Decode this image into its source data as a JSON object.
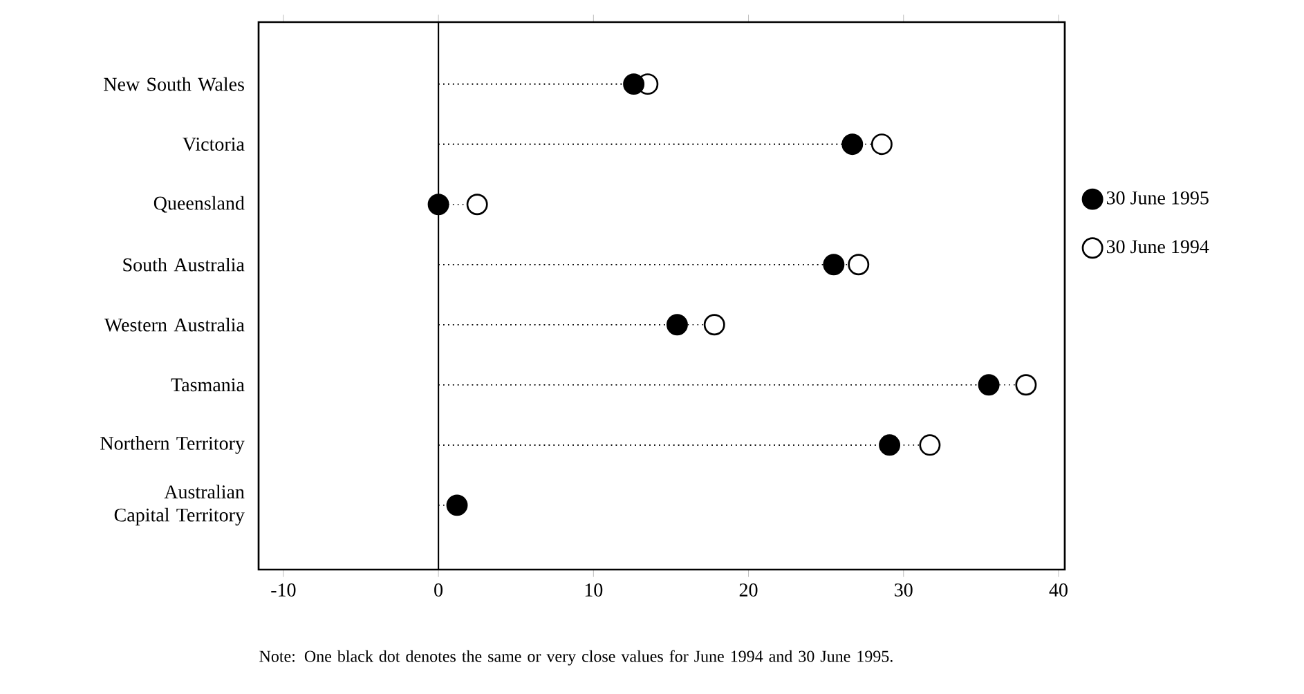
{
  "chart_data": {
    "type": "lollipop",
    "orientation": "horizontal",
    "categories": [
      "New South Wales",
      "Victoria",
      "Queensland",
      "South Australia",
      "Western Australia",
      "Tasmania",
      "Northern Territory",
      "Australian Capital Territory"
    ],
    "series": [
      {
        "name": "30 June 1995",
        "color": "#000000",
        "values": [
          12.6,
          26.7,
          0,
          25.5,
          15.4,
          35.5,
          29.1,
          1.2
        ]
      },
      {
        "name": "30 June 1994",
        "color": "#000000",
        "values": [
          13.5,
          28.6,
          2.5,
          27.1,
          17.8,
          37.9,
          31.7,
          null
        ]
      }
    ],
    "xlim": [
      -11.6,
      40.4
    ],
    "xticks": [
      -10,
      0,
      10,
      20,
      30,
      40
    ],
    "ref_lines": [
      {
        "axis": "x",
        "value": 0
      }
    ],
    "line_style": "dotted",
    "legend": "right",
    "annotations": [
      "Note: One black dot denotes the same or very close values for June 1994 and 30 June 1995."
    ]
  }
}
